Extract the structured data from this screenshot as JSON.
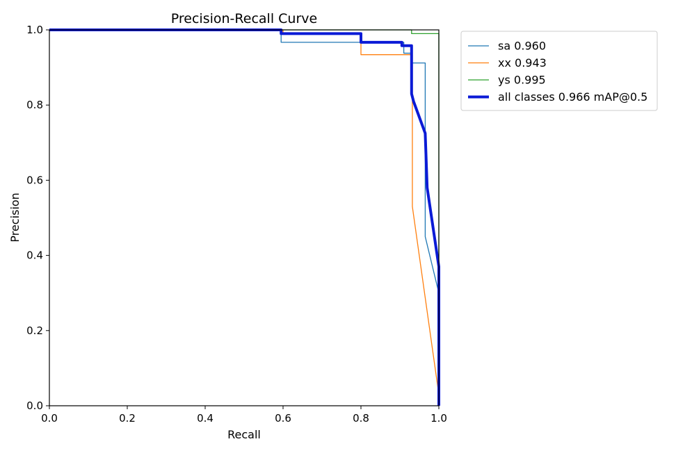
{
  "chart_data": {
    "type": "line",
    "title": "Precision-Recall Curve",
    "xlabel": "Recall",
    "ylabel": "Precision",
    "xlim": [
      0,
      1
    ],
    "ylim": [
      0,
      1
    ],
    "xticks": [
      "0.0",
      "0.2",
      "0.4",
      "0.6",
      "0.8",
      "1.0"
    ],
    "yticks": [
      "0.0",
      "0.2",
      "0.4",
      "0.6",
      "0.8",
      "1.0"
    ],
    "grid": false,
    "legend_position": "outside-top-right",
    "series": [
      {
        "name": "sa 0.960",
        "color": "#1f77b4",
        "width": "thin",
        "x": [
          0,
          0.595,
          0.595,
          0.8,
          0.8,
          0.91,
          0.91,
          0.93,
          0.93,
          0.965,
          0.965,
          1.0,
          1.0
        ],
        "y": [
          1.0,
          1.0,
          0.967,
          0.967,
          0.967,
          0.967,
          0.938,
          0.938,
          0.912,
          0.912,
          0.45,
          0.3,
          0.0
        ]
      },
      {
        "name": "xx 0.943",
        "color": "#ff7f0e",
        "width": "thin",
        "x": [
          0,
          0.6,
          0.6,
          0.8,
          0.8,
          0.905,
          0.905,
          0.932,
          0.932,
          0.932,
          1.0,
          1.0
        ],
        "y": [
          1.0,
          1.0,
          0.99,
          0.99,
          0.934,
          0.934,
          0.934,
          0.934,
          0.8,
          0.53,
          0.03,
          0.0
        ]
      },
      {
        "name": "ys 0.995",
        "color": "#2ca02c",
        "width": "thin",
        "x": [
          0,
          0.93,
          0.93,
          0.965,
          0.965,
          1.0,
          1.0
        ],
        "y": [
          1.0,
          1.0,
          0.99,
          0.99,
          0.99,
          0.99,
          0.0
        ]
      },
      {
        "name": "all classes 0.966 mAP@0.5",
        "color": "#0b1bd6",
        "width": "thick",
        "x": [
          0,
          0.595,
          0.595,
          0.8,
          0.8,
          0.905,
          0.905,
          0.925,
          0.925,
          0.93,
          0.93,
          0.935,
          0.965,
          0.97,
          1.0,
          1.0,
          1.0
        ],
        "y": [
          1.0,
          1.0,
          0.99,
          0.99,
          0.967,
          0.967,
          0.958,
          0.958,
          0.958,
          0.958,
          0.83,
          0.81,
          0.725,
          0.58,
          0.37,
          0.0,
          0.0
        ]
      }
    ]
  }
}
